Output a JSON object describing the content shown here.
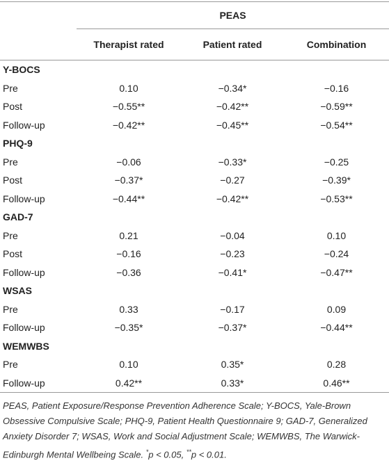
{
  "table": {
    "group_header": "PEAS",
    "columns": [
      "Therapist rated",
      "Patient rated",
      "Combination"
    ],
    "sections": [
      {
        "name": "Y-BOCS",
        "rows": [
          [
            "Pre",
            "0.10",
            "−0.34*",
            "−0.16"
          ],
          [
            "Post",
            "−0.55**",
            "−0.42**",
            "−0.59**"
          ],
          [
            "Follow-up",
            "−0.42**",
            "−0.45**",
            "−0.54**"
          ]
        ]
      },
      {
        "name": "PHQ-9",
        "rows": [
          [
            "Pre",
            "−0.06",
            "−0.33*",
            "−0.25"
          ],
          [
            "Post",
            "−0.37*",
            "−0.27",
            "−0.39*"
          ],
          [
            "Follow-up",
            "−0.44**",
            "−0.42**",
            "−0.53**"
          ]
        ]
      },
      {
        "name": "GAD-7",
        "rows": [
          [
            "Pre",
            "0.21",
            "−0.04",
            "0.10"
          ],
          [
            "Post",
            "−0.16",
            "−0.23",
            "−0.24"
          ],
          [
            "Follow-up",
            "−0.36",
            "−0.41*",
            "−0.47**"
          ]
        ]
      },
      {
        "name": "WSAS",
        "rows": [
          [
            "Pre",
            "0.33",
            "−0.17",
            "0.09"
          ],
          [
            "Follow-up",
            "−0.35*",
            "−0.37*",
            "−0.44**"
          ]
        ]
      },
      {
        "name": "WEMWBS",
        "rows": [
          [
            "Pre",
            "0.10",
            "0.35*",
            "0.28"
          ],
          [
            "Follow-up",
            "0.42**",
            "0.33*",
            "0.46**"
          ]
        ]
      }
    ],
    "footnote": {
      "text": "PEAS, Patient Exposure/Response Prevention Adherence Scale; Y-BOCS, Yale-Brown Obsessive Compulsive Scale; PHQ-9, Patient Health Questionnaire 9; GAD-7, Generalized Anxiety Disorder 7; WSAS, Work and Social Adjustment Scale; WEMWBS, The Warwick-Edinburgh Mental Wellbeing Scale.",
      "notes": [
        {
          "mark": "*",
          "text": "p < 0.05,"
        },
        {
          "mark": "**",
          "text": "p < 0.01."
        }
      ]
    }
  }
}
